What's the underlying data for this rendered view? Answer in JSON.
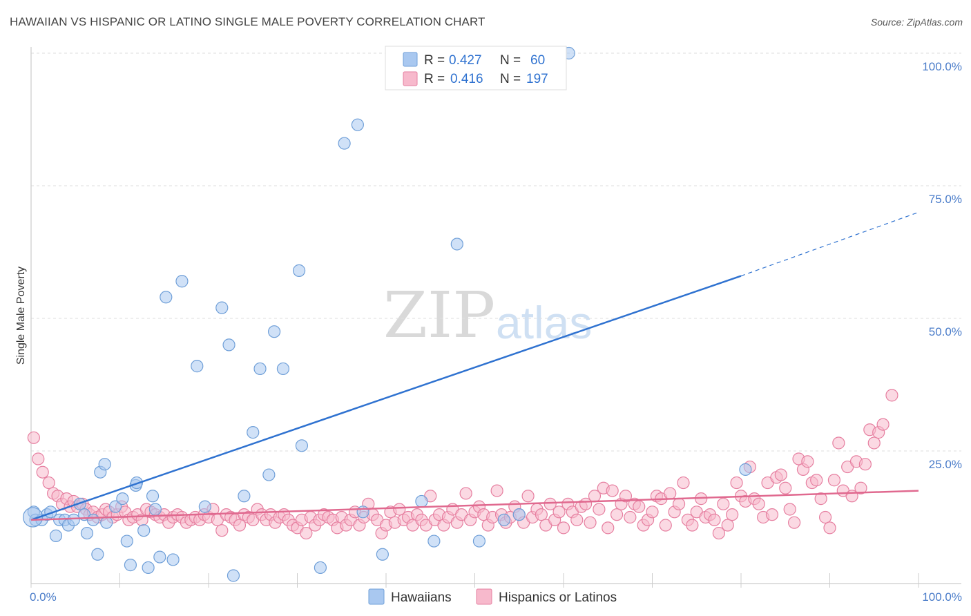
{
  "header": {
    "title": "HAWAIIAN VS HISPANIC OR LATINO SINGLE MALE POVERTY CORRELATION CHART",
    "source": "Source: ZipAtlas.com"
  },
  "watermark": {
    "zip": "ZIP",
    "atlas": "atlas"
  },
  "legend": {
    "r_label": "R =",
    "n_label": "N =",
    "rows": [
      {
        "r": "0.427",
        "n": "60",
        "color": "#a9c8f0",
        "stroke": "#6f9fd8"
      },
      {
        "r": "0.416",
        "n": "197",
        "color": "#f7b9cc",
        "stroke": "#e67fa0"
      }
    ]
  },
  "bottom_legend": {
    "items": [
      {
        "label": "Hawaiians",
        "color": "#a9c8f0",
        "stroke": "#6f9fd8"
      },
      {
        "label": "Hispanics or Latinos",
        "color": "#f7b9cc",
        "stroke": "#e67fa0"
      }
    ]
  },
  "chart_data": {
    "type": "scatter",
    "ylabel": "Single Male Poverty",
    "xlabel": "",
    "xlim": [
      0,
      100
    ],
    "ylim": [
      0,
      100
    ],
    "x_tick_labels": [
      "0.0%",
      "100.0%"
    ],
    "y_tick_labels": [
      "100.0%",
      "75.0%",
      "50.0%",
      "25.0%"
    ],
    "y_tick_values": [
      100,
      75,
      50,
      25
    ],
    "grid": true,
    "series": [
      {
        "name": "Hawaiians",
        "color": "#a9c8f0",
        "stroke": "#6f9fd8",
        "line_color": "#2f72d0",
        "trend": {
          "x0": 0,
          "y0": 12,
          "x1": 80,
          "y1": 58,
          "dash_to_x": 100,
          "dash_to_y": 70
        },
        "points": [
          [
            0.3,
            13.5
          ],
          [
            0.5,
            12
          ],
          [
            1.2,
            12
          ],
          [
            1.8,
            13
          ],
          [
            2.2,
            13.5
          ],
          [
            2.8,
            9
          ],
          [
            3.2,
            12
          ],
          [
            3.8,
            12
          ],
          [
            4.2,
            11
          ],
          [
            4.8,
            12
          ],
          [
            5.5,
            15
          ],
          [
            6.0,
            13
          ],
          [
            6.3,
            9.5
          ],
          [
            7.0,
            12
          ],
          [
            7.5,
            5.5
          ],
          [
            7.8,
            21
          ],
          [
            8.3,
            22.5
          ],
          [
            8.5,
            11.5
          ],
          [
            9.5,
            14.5
          ],
          [
            10.3,
            16
          ],
          [
            10.8,
            8
          ],
          [
            11.2,
            3.5
          ],
          [
            11.8,
            18.5
          ],
          [
            11.9,
            19
          ],
          [
            12.7,
            10
          ],
          [
            13.2,
            3
          ],
          [
            13.7,
            16.5
          ],
          [
            14.0,
            14
          ],
          [
            14.5,
            5
          ],
          [
            15.2,
            54
          ],
          [
            16.0,
            4.5
          ],
          [
            17.0,
            57
          ],
          [
            18.7,
            41
          ],
          [
            19.6,
            14.5
          ],
          [
            21.5,
            52
          ],
          [
            22.3,
            45
          ],
          [
            22.8,
            1.5
          ],
          [
            24.0,
            16.5
          ],
          [
            25.0,
            28.5
          ],
          [
            25.8,
            40.5
          ],
          [
            26.8,
            20.5
          ],
          [
            27.4,
            47.5
          ],
          [
            28.4,
            40.5
          ],
          [
            30.2,
            59
          ],
          [
            30.5,
            26
          ],
          [
            32.6,
            3
          ],
          [
            35.3,
            83
          ],
          [
            36.8,
            86.5
          ],
          [
            37.4,
            13.5
          ],
          [
            39.6,
            5.5
          ],
          [
            44.0,
            15.5
          ],
          [
            45.4,
            8
          ],
          [
            48.0,
            64
          ],
          [
            50.5,
            8
          ],
          [
            53.3,
            12
          ],
          [
            55.0,
            13
          ],
          [
            60.6,
            100
          ],
          [
            80.5,
            21.5
          ]
        ]
      },
      {
        "name": "Hispanics or Latinos",
        "color": "#f7b9cc",
        "stroke": "#e67fa0",
        "line_color": "#e0698f",
        "trend": {
          "x0": 0,
          "y0": 12,
          "x1": 100,
          "y1": 17.5
        },
        "points": [
          [
            0.3,
            27.5
          ],
          [
            0.8,
            23.5
          ],
          [
            1.3,
            21
          ],
          [
            2.0,
            19
          ],
          [
            2.5,
            17
          ],
          [
            3.0,
            16.5
          ],
          [
            3.5,
            15
          ],
          [
            4.0,
            16
          ],
          [
            4.4,
            14.5
          ],
          [
            4.8,
            15.5
          ],
          [
            5.2,
            14.5
          ],
          [
            5.8,
            15
          ],
          [
            6.2,
            14
          ],
          [
            6.6,
            13
          ],
          [
            7.0,
            13.5
          ],
          [
            7.5,
            12.5
          ],
          [
            8.0,
            13
          ],
          [
            8.4,
            14
          ],
          [
            8.8,
            13.5
          ],
          [
            9.2,
            12.5
          ],
          [
            9.7,
            13
          ],
          [
            10.2,
            14.5
          ],
          [
            10.6,
            13.5
          ],
          [
            11.0,
            12
          ],
          [
            11.5,
            12.5
          ],
          [
            12.0,
            13
          ],
          [
            12.5,
            12
          ],
          [
            13.0,
            14
          ],
          [
            13.5,
            13.5
          ],
          [
            14.0,
            13
          ],
          [
            14.5,
            12.5
          ],
          [
            15.0,
            13
          ],
          [
            15.5,
            11.5
          ],
          [
            16.0,
            12.5
          ],
          [
            16.5,
            13
          ],
          [
            17.0,
            12.5
          ],
          [
            17.5,
            11.5
          ],
          [
            18.0,
            12
          ],
          [
            18.5,
            12.5
          ],
          [
            19.0,
            12
          ],
          [
            19.5,
            13
          ],
          [
            20.0,
            12.5
          ],
          [
            20.5,
            14
          ],
          [
            21.0,
            12
          ],
          [
            21.5,
            10
          ],
          [
            22.0,
            13
          ],
          [
            22.5,
            12.5
          ],
          [
            23.0,
            12
          ],
          [
            23.5,
            11
          ],
          [
            24.0,
            13
          ],
          [
            24.5,
            12.5
          ],
          [
            25.0,
            12
          ],
          [
            25.5,
            14
          ],
          [
            26.0,
            13
          ],
          [
            26.5,
            12
          ],
          [
            27.0,
            13
          ],
          [
            27.5,
            11.5
          ],
          [
            28.0,
            12.5
          ],
          [
            28.5,
            13
          ],
          [
            29.0,
            12
          ],
          [
            29.5,
            11
          ],
          [
            30.0,
            10.5
          ],
          [
            30.5,
            12
          ],
          [
            31.0,
            9.5
          ],
          [
            31.5,
            12.5
          ],
          [
            32.0,
            11
          ],
          [
            32.5,
            12
          ],
          [
            33.0,
            13
          ],
          [
            33.5,
            12.5
          ],
          [
            34.0,
            12
          ],
          [
            34.5,
            10.5
          ],
          [
            35.0,
            12.5
          ],
          [
            35.5,
            11
          ],
          [
            36.0,
            12
          ],
          [
            36.5,
            13.5
          ],
          [
            37.0,
            11
          ],
          [
            37.5,
            12.5
          ],
          [
            38.0,
            15
          ],
          [
            38.5,
            13
          ],
          [
            39.0,
            12
          ],
          [
            39.5,
            9.5
          ],
          [
            40.0,
            11
          ],
          [
            40.5,
            13.5
          ],
          [
            41.0,
            11.5
          ],
          [
            41.5,
            14
          ],
          [
            42.0,
            12
          ],
          [
            42.5,
            12.5
          ],
          [
            43.0,
            11
          ],
          [
            43.5,
            13
          ],
          [
            44.0,
            12
          ],
          [
            44.5,
            11
          ],
          [
            45.0,
            16.5
          ],
          [
            45.5,
            12
          ],
          [
            46.0,
            13
          ],
          [
            46.5,
            11
          ],
          [
            47.0,
            12.5
          ],
          [
            47.5,
            14
          ],
          [
            48.0,
            11.5
          ],
          [
            48.5,
            13
          ],
          [
            49.0,
            17
          ],
          [
            49.5,
            12
          ],
          [
            50.0,
            13.5
          ],
          [
            50.5,
            14.5
          ],
          [
            51.0,
            13
          ],
          [
            51.5,
            11
          ],
          [
            52.0,
            12.5
          ],
          [
            52.5,
            17.5
          ],
          [
            53.0,
            13
          ],
          [
            53.5,
            11.5
          ],
          [
            54.0,
            12.5
          ],
          [
            54.5,
            14.5
          ],
          [
            55.0,
            13
          ],
          [
            55.5,
            11.5
          ],
          [
            56.0,
            16.5
          ],
          [
            56.5,
            12.5
          ],
          [
            57.0,
            14
          ],
          [
            57.5,
            13
          ],
          [
            58.0,
            11
          ],
          [
            58.5,
            15
          ],
          [
            59.0,
            12
          ],
          [
            59.5,
            13.5
          ],
          [
            60.0,
            10.5
          ],
          [
            60.5,
            15
          ],
          [
            61.0,
            13.5
          ],
          [
            61.5,
            12
          ],
          [
            62.0,
            14.5
          ],
          [
            62.5,
            15
          ],
          [
            63.0,
            11.5
          ],
          [
            63.5,
            16.5
          ],
          [
            64.0,
            14
          ],
          [
            64.5,
            18
          ],
          [
            65.0,
            10.5
          ],
          [
            65.5,
            17.5
          ],
          [
            66.0,
            13
          ],
          [
            66.5,
            15
          ],
          [
            67.0,
            16.5
          ],
          [
            67.5,
            12.5
          ],
          [
            68.0,
            15
          ],
          [
            68.5,
            14.5
          ],
          [
            69.0,
            11
          ],
          [
            69.5,
            12
          ],
          [
            70.0,
            13.5
          ],
          [
            70.5,
            16.5
          ],
          [
            71.0,
            16
          ],
          [
            71.5,
            11
          ],
          [
            72.0,
            17
          ],
          [
            72.5,
            13.5
          ],
          [
            73.0,
            15
          ],
          [
            73.5,
            19
          ],
          [
            74.0,
            12
          ],
          [
            74.5,
            11
          ],
          [
            75.0,
            13.5
          ],
          [
            75.5,
            16
          ],
          [
            76.0,
            12.5
          ],
          [
            76.5,
            13
          ],
          [
            77.0,
            12
          ],
          [
            77.5,
            9.5
          ],
          [
            78.0,
            15
          ],
          [
            78.5,
            11
          ],
          [
            79.0,
            13
          ],
          [
            79.5,
            19
          ],
          [
            80.0,
            16.5
          ],
          [
            80.5,
            15.5
          ],
          [
            81.0,
            22
          ],
          [
            81.5,
            16
          ],
          [
            82.0,
            15
          ],
          [
            82.5,
            12.5
          ],
          [
            83.0,
            19
          ],
          [
            83.5,
            13
          ],
          [
            84.0,
            20
          ],
          [
            84.5,
            20.5
          ],
          [
            85.0,
            18
          ],
          [
            85.5,
            14
          ],
          [
            86.0,
            11.5
          ],
          [
            86.5,
            23.5
          ],
          [
            87.0,
            21.5
          ],
          [
            87.5,
            23
          ],
          [
            88.0,
            19
          ],
          [
            88.5,
            19.5
          ],
          [
            89.0,
            16
          ],
          [
            89.5,
            12.5
          ],
          [
            90.0,
            10.5
          ],
          [
            90.5,
            19.5
          ],
          [
            91.0,
            26.5
          ],
          [
            91.5,
            17.5
          ],
          [
            92.0,
            22
          ],
          [
            92.5,
            16.5
          ],
          [
            93.0,
            23
          ],
          [
            93.5,
            18
          ],
          [
            94.0,
            22.5
          ],
          [
            94.5,
            29
          ],
          [
            95.0,
            26.5
          ],
          [
            95.5,
            28.5
          ],
          [
            96.0,
            30
          ],
          [
            97.0,
            35.5
          ]
        ]
      }
    ]
  }
}
